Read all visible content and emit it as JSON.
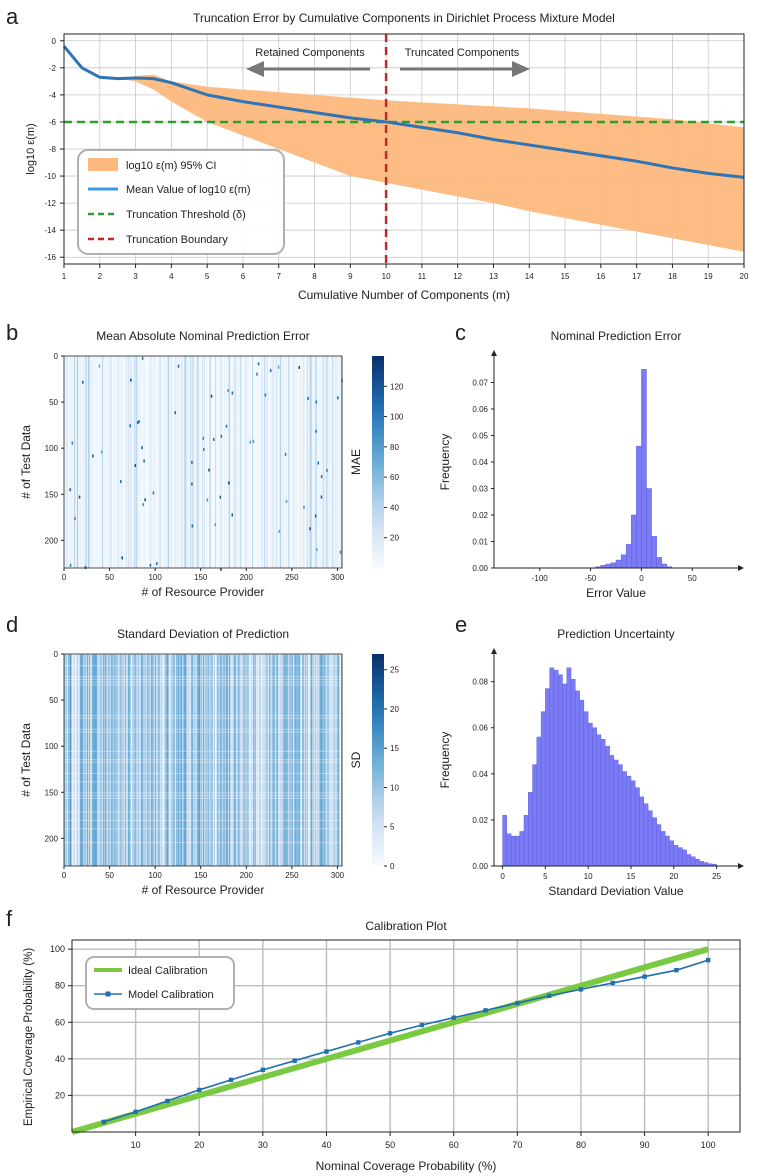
{
  "panels": {
    "a": {
      "letter": "a"
    },
    "b": {
      "letter": "b"
    },
    "c": {
      "letter": "c"
    },
    "d": {
      "letter": "d"
    },
    "e": {
      "letter": "e"
    },
    "f": {
      "letter": "f"
    }
  },
  "colors": {
    "ci_band": "#fdb87d",
    "mean_line": "#2f74b5",
    "threshold": "#2ca02c",
    "boundary": "#c0282a",
    "hist": "#7b7bf5",
    "heat_dark": "#08306b",
    "ideal": "#7ac943",
    "model": "#1f6fb0",
    "grid": "#c8c8c8"
  },
  "chart_data": [
    {
      "id": "a",
      "type": "line",
      "title": "Truncation Error by Cumulative Components in Dirichlet Process Mixture Model",
      "xlabel": "Cumulative Number of Components (m)",
      "ylabel": "log10 ε(m)",
      "xlim": [
        1,
        20
      ],
      "ylim": [
        -16.5,
        0.5
      ],
      "xticks": [
        1,
        2,
        3,
        4,
        5,
        6,
        7,
        8,
        9,
        10,
        11,
        12,
        13,
        14,
        15,
        16,
        17,
        18,
        19,
        20
      ],
      "yticks": [
        0,
        -2,
        -4,
        -6,
        -8,
        -10,
        -12,
        -14,
        -16
      ],
      "grid": true,
      "legend_position": "lower-left",
      "legend": [
        "log10 ε(m)  95% CI",
        "Mean Value of log10 ε(m)",
        "Truncation Threshold (δ)",
        "Truncation Boundary"
      ],
      "annotations": {
        "left": "Retained Components",
        "right": "Truncated Components"
      },
      "mean": {
        "x": [
          1,
          1.5,
          2,
          2.5,
          3,
          3.5,
          4,
          5,
          6,
          7,
          8,
          9,
          10,
          11,
          12,
          13,
          14,
          15,
          16,
          17,
          18,
          19,
          20
        ],
        "y": [
          -0.4,
          -2.0,
          -2.7,
          -2.8,
          -2.75,
          -2.8,
          -3.1,
          -4.0,
          -4.5,
          -4.9,
          -5.3,
          -5.7,
          -6.0,
          -6.4,
          -6.8,
          -7.3,
          -7.7,
          -8.1,
          -8.5,
          -8.9,
          -9.4,
          -9.8,
          -10.1
        ]
      },
      "ci": {
        "x": [
          1,
          1.5,
          2,
          2.5,
          3,
          3.5,
          4,
          5,
          6,
          7,
          8,
          9,
          10,
          11,
          12,
          13,
          14,
          15,
          16,
          17,
          18,
          19,
          20
        ],
        "upper": [
          -0.4,
          -2.0,
          -2.7,
          -2.8,
          -2.6,
          -2.5,
          -3.0,
          -3.4,
          -3.6,
          -3.8,
          -4.0,
          -4.2,
          -4.4,
          -4.55,
          -4.7,
          -4.85,
          -5.0,
          -5.2,
          -5.4,
          -5.6,
          -5.8,
          -6.1,
          -6.4
        ],
        "lower": [
          -0.4,
          -2.0,
          -2.7,
          -2.8,
          -3.0,
          -3.6,
          -4.5,
          -6.0,
          -7.0,
          -8.0,
          -9.0,
          -10.0,
          -10.5,
          -11.0,
          -11.5,
          -12.0,
          -12.6,
          -13.1,
          -13.6,
          -14.1,
          -14.6,
          -15.1,
          -15.6
        ]
      },
      "threshold": -6.0,
      "boundary_x": 10
    },
    {
      "id": "b",
      "type": "heatmap",
      "title": "Mean Absolute Nominal Prediction Error",
      "xlabel": "# of Resource Provider",
      "ylabel": "# of Test Data",
      "colorbar_label": "MAE",
      "xticks": [
        0,
        50,
        100,
        150,
        200,
        250,
        300
      ],
      "yticks": [
        0,
        50,
        100,
        150,
        200
      ],
      "colorbar_ticks": [
        20,
        40,
        60,
        80,
        100,
        120
      ],
      "colorbar_range": [
        0,
        140
      ],
      "n_cols": 300,
      "n_rows": 230
    },
    {
      "id": "c",
      "type": "bar",
      "title": "Nominal Prediction Error",
      "xlabel": "Error Value",
      "ylabel": "Frequency",
      "xlim": [
        -145,
        95
      ],
      "ylim": [
        0,
        0.08
      ],
      "xticks": [
        -100,
        -50,
        0,
        50
      ],
      "yticks": [
        0.0,
        0.01,
        0.02,
        0.03,
        0.04,
        0.05,
        0.06,
        0.07
      ],
      "bin_width": 5,
      "bin_starts": [
        -45,
        -40,
        -35,
        -30,
        -25,
        -20,
        -15,
        -10,
        -5,
        0,
        5,
        10,
        15,
        20,
        25
      ],
      "values": [
        0.0005,
        0.001,
        0.0015,
        0.002,
        0.003,
        0.005,
        0.009,
        0.02,
        0.046,
        0.075,
        0.03,
        0.012,
        0.004,
        0.0015,
        0.0005
      ]
    },
    {
      "id": "d",
      "type": "heatmap",
      "title": "Standard Deviation of Prediction",
      "xlabel": "# of Resource Provider",
      "ylabel": "# of Test Data",
      "colorbar_label": "SD",
      "xticks": [
        0,
        50,
        100,
        150,
        200,
        250,
        300
      ],
      "yticks": [
        0,
        50,
        100,
        150,
        200
      ],
      "colorbar_ticks": [
        0,
        5,
        10,
        15,
        20,
        25
      ],
      "colorbar_range": [
        0,
        27
      ],
      "n_cols": 300,
      "n_rows": 230
    },
    {
      "id": "e",
      "type": "bar",
      "title": "Prediction Uncertainty",
      "xlabel": "Standard Deviation Value",
      "ylabel": "Frequency",
      "xlim": [
        -1,
        27.5
      ],
      "ylim": [
        0,
        0.092
      ],
      "xticks": [
        0,
        5,
        10,
        15,
        20,
        25
      ],
      "yticks": [
        0.0,
        0.02,
        0.04,
        0.06,
        0.08
      ],
      "bin_width": 0.5,
      "bin_starts": [
        0,
        0.5,
        1,
        1.5,
        2,
        2.5,
        3,
        3.5,
        4,
        4.5,
        5,
        5.5,
        6,
        6.5,
        7,
        7.5,
        8,
        8.5,
        9,
        9.5,
        10,
        10.5,
        11,
        11.5,
        12,
        12.5,
        13,
        13.5,
        14,
        14.5,
        15,
        15.5,
        16,
        16.5,
        17,
        17.5,
        18,
        18.5,
        19,
        19.5,
        20,
        20.5,
        21,
        21.5,
        22,
        22.5,
        23,
        23.5,
        24,
        24.5
      ],
      "values": [
        0.022,
        0.014,
        0.013,
        0.013,
        0.015,
        0.022,
        0.032,
        0.044,
        0.056,
        0.067,
        0.077,
        0.086,
        0.085,
        0.083,
        0.079,
        0.086,
        0.081,
        0.076,
        0.072,
        0.067,
        0.062,
        0.06,
        0.057,
        0.055,
        0.052,
        0.048,
        0.046,
        0.044,
        0.041,
        0.039,
        0.037,
        0.034,
        0.03,
        0.027,
        0.024,
        0.021,
        0.018,
        0.015,
        0.013,
        0.011,
        0.009,
        0.008,
        0.007,
        0.005,
        0.004,
        0.003,
        0.002,
        0.0015,
        0.001,
        0.0008
      ]
    },
    {
      "id": "f",
      "type": "line",
      "title": "Calibration Plot",
      "xlabel": "Nominal Coverage Probability (%)",
      "ylabel": "Empirical Coverage Probability (%)",
      "xlim": [
        0,
        105
      ],
      "ylim": [
        0,
        105
      ],
      "xticks": [
        10,
        20,
        30,
        40,
        50,
        60,
        70,
        80,
        90,
        100
      ],
      "yticks": [
        20,
        40,
        60,
        80,
        100
      ],
      "grid": true,
      "legend_position": "top-left",
      "series": [
        {
          "name": "Ideal Calibration",
          "x": [
            0,
            100
          ],
          "y": [
            0,
            100
          ]
        },
        {
          "name": "Model Calibration",
          "x": [
            5,
            10,
            15,
            20,
            25,
            30,
            35,
            40,
            45,
            50,
            55,
            60,
            65,
            70,
            75,
            80,
            85,
            90,
            95,
            100
          ],
          "y": [
            5.5,
            11,
            17,
            23,
            28.5,
            34,
            39,
            44,
            49,
            54,
            58.5,
            62.5,
            66.5,
            70.5,
            74.5,
            78,
            81.5,
            85,
            88.5,
            94
          ]
        }
      ]
    }
  ]
}
